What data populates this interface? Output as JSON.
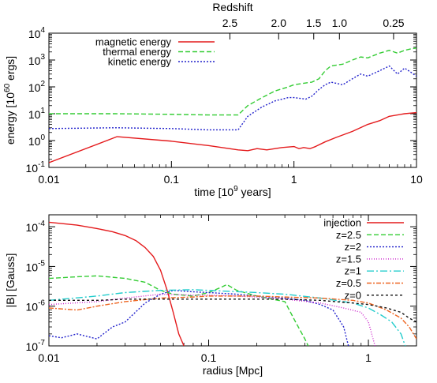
{
  "chart_data": [
    {
      "type": "line",
      "xlabel": "time [10",
      "xlabel_sup": "9",
      "xlabel_tail": " years]",
      "ylabel": "energy [10",
      "ylabel_sup": "60",
      "ylabel_tail": " ergs]",
      "top_axis_label": "Redshift",
      "x_scale": "log",
      "y_scale": "log",
      "xlim": [
        0.01,
        10
      ],
      "ylim": [
        0.1,
        10000
      ],
      "x_ticks": [
        {
          "v": 0.01,
          "label": "0.01"
        },
        {
          "v": 0.1,
          "label": "0.1"
        },
        {
          "v": 1,
          "label": "1"
        },
        {
          "v": 10,
          "label": "10"
        }
      ],
      "y_ticks": [
        {
          "v": 0.1,
          "base": "10",
          "exp": "-1"
        },
        {
          "v": 1,
          "base": "10",
          "exp": "0"
        },
        {
          "v": 10,
          "base": "10",
          "exp": "1"
        },
        {
          "v": 100,
          "base": "10",
          "exp": "2"
        },
        {
          "v": 1000,
          "base": "10",
          "exp": "3"
        },
        {
          "v": 10000,
          "base": "10",
          "exp": "4"
        }
      ],
      "top_ticks": [
        {
          "v": 0.3,
          "label": "2.5"
        },
        {
          "v": 0.75,
          "label": "2.0"
        },
        {
          "v": 1.45,
          "label": "1.5"
        },
        {
          "v": 2.35,
          "label": "1.0"
        },
        {
          "v": 6.5,
          "label": "0.25"
        }
      ],
      "legend_position": "top-left",
      "series": [
        {
          "name": "magnetic energy",
          "color": "#e41a1c",
          "dash": "",
          "x": [
            0.01,
            0.036,
            0.1,
            0.2,
            0.35,
            0.42,
            0.5,
            0.6,
            0.8,
            1.0,
            1.1,
            1.2,
            1.35,
            1.5,
            1.8,
            2.2,
            3.0,
            4.0,
            5.0,
            6.0,
            8.0,
            10.0
          ],
          "y": [
            0.15,
            1.4,
            0.95,
            0.65,
            0.45,
            0.42,
            0.5,
            0.45,
            0.55,
            0.6,
            0.5,
            0.55,
            0.5,
            0.6,
            0.9,
            1.3,
            2.2,
            4.0,
            5.5,
            8.0,
            10.0,
            11.0
          ]
        },
        {
          "name": "thermal energy",
          "color": "#33cc33",
          "dash": "6 3",
          "x": [
            0.01,
            0.035,
            0.1,
            0.2,
            0.35,
            0.42,
            0.55,
            0.7,
            0.9,
            1.0,
            1.25,
            1.4,
            1.6,
            1.8,
            2.0,
            2.5,
            3.0,
            3.5,
            4.0,
            5.0,
            6.0,
            7.0,
            8.0,
            9.0,
            10.0
          ],
          "y": [
            10,
            10,
            9.5,
            9.0,
            9.0,
            20,
            40,
            70,
            100,
            120,
            140,
            150,
            200,
            400,
            600,
            700,
            1000,
            1300,
            1200,
            1800,
            2300,
            1800,
            2300,
            2600,
            2800
          ]
        },
        {
          "name": "kinetic energy",
          "color": "#2222cc",
          "dash": "2 2",
          "x": [
            0.01,
            0.035,
            0.1,
            0.2,
            0.35,
            0.42,
            0.55,
            0.7,
            0.9,
            1.0,
            1.25,
            1.4,
            1.6,
            1.8,
            2.0,
            2.5,
            3.0,
            3.5,
            4.0,
            5.0,
            6.0,
            7.0,
            8.0,
            9.0,
            10.0
          ],
          "y": [
            2.8,
            3.0,
            2.8,
            2.5,
            2.5,
            8.0,
            18,
            30,
            40,
            40,
            35,
            45,
            80,
            120,
            150,
            120,
            200,
            300,
            250,
            400,
            600,
            300,
            500,
            350,
            250
          ]
        }
      ]
    },
    {
      "type": "line",
      "xlabel": "radius [Mpc]",
      "ylabel": "|B| [Gauss]",
      "x_scale": "log",
      "y_scale": "log",
      "xlim": [
        0.01,
        2
      ],
      "ylim": [
        1e-07,
        0.0002
      ],
      "x_ticks": [
        {
          "v": 0.01,
          "label": "0.01"
        },
        {
          "v": 0.1,
          "label": "0.1"
        },
        {
          "v": 1,
          "label": "1"
        }
      ],
      "y_ticks": [
        {
          "v": 1e-07,
          "base": "10",
          "exp": "-7"
        },
        {
          "v": 1e-06,
          "base": "10",
          "exp": "-6"
        },
        {
          "v": 1e-05,
          "base": "10",
          "exp": "-5"
        },
        {
          "v": 0.0001,
          "base": "10",
          "exp": "-4"
        }
      ],
      "legend_position": "top-right",
      "series": [
        {
          "name": "injection",
          "color": "#e41a1c",
          "dash": "",
          "x": [
            0.01,
            0.015,
            0.02,
            0.025,
            0.03,
            0.035,
            0.04,
            0.045,
            0.05,
            0.055,
            0.06,
            0.065,
            0.07
          ],
          "y": [
            0.00013,
            0.00011,
            9e-05,
            7.5e-05,
            6e-05,
            4.5e-05,
            3e-05,
            1.8e-05,
            8e-06,
            2.5e-06,
            7e-07,
            2e-07,
            1e-07
          ]
        },
        {
          "name": "z=2.5",
          "color": "#33cc33",
          "dash": "6 3",
          "x": [
            0.01,
            0.015,
            0.02,
            0.03,
            0.04,
            0.05,
            0.06,
            0.08,
            0.1,
            0.12,
            0.13,
            0.15,
            0.2,
            0.3,
            0.35,
            0.4,
            0.42
          ],
          "y": [
            5e-06,
            5.5e-06,
            5.8e-06,
            5e-06,
            4e-06,
            2.5e-06,
            2e-06,
            1.8e-06,
            2.2e-06,
            3e-06,
            3.5e-06,
            2.5e-06,
            1.8e-06,
            1.3e-06,
            4e-07,
            1.5e-07,
            1e-07
          ]
        },
        {
          "name": "z=2",
          "color": "#2222cc",
          "dash": "2 2",
          "x": [
            0.01,
            0.012,
            0.015,
            0.02,
            0.025,
            0.03,
            0.04,
            0.05,
            0.06,
            0.08,
            0.1,
            0.15,
            0.2,
            0.3,
            0.4,
            0.5,
            0.6,
            0.7,
            0.75
          ],
          "y": [
            1.8e-07,
            1.6e-07,
            2e-07,
            1.5e-07,
            3e-07,
            4e-07,
            1.2e-06,
            2e-06,
            2.5e-06,
            2.3e-06,
            2.2e-06,
            2e-06,
            1.8e-06,
            1.6e-06,
            1.4e-06,
            1.1e-06,
            8e-07,
            3e-07,
            1e-07
          ]
        },
        {
          "name": "z=1.5",
          "color": "#cc22cc",
          "dash": "1 2",
          "x": [
            0.01,
            0.02,
            0.03,
            0.05,
            0.08,
            0.1,
            0.15,
            0.2,
            0.3,
            0.5,
            0.7,
            0.9,
            1.0,
            1.1
          ],
          "y": [
            1.1e-06,
            1.3e-06,
            1.6e-06,
            2e-06,
            1.9e-06,
            1.9e-06,
            1.8e-06,
            1.7e-06,
            1.5e-06,
            1.2e-06,
            9e-07,
            7e-07,
            4e-07,
            1e-07
          ]
        },
        {
          "name": "z=1",
          "color": "#22cccc",
          "dash": "9 3 2 3",
          "x": [
            0.01,
            0.02,
            0.03,
            0.05,
            0.08,
            0.1,
            0.2,
            0.3,
            0.5,
            0.8,
            1.0,
            1.2,
            1.4,
            1.6,
            1.7
          ],
          "y": [
            1.4e-06,
            1.8e-06,
            2.2e-06,
            2.5e-06,
            2.6e-06,
            2.5e-06,
            2.2e-06,
            2e-06,
            1.6e-06,
            1.2e-06,
            9e-07,
            6e-07,
            4e-07,
            2e-07,
            1e-07
          ]
        },
        {
          "name": "z=0.5",
          "color": "#ee6622",
          "dash": "6 2 2 2",
          "x": [
            0.01,
            0.015,
            0.02,
            0.03,
            0.05,
            0.08,
            0.1,
            0.2,
            0.3,
            0.5,
            0.8,
            1.0,
            1.3,
            1.6,
            1.8,
            2.0
          ],
          "y": [
            9e-07,
            8e-07,
            1e-06,
            1.3e-06,
            1.6e-06,
            1.7e-06,
            1.8e-06,
            1.8e-06,
            1.7e-06,
            1.6e-06,
            1.4e-06,
            1.2e-06,
            8e-07,
            5e-07,
            3e-07,
            1.5e-07
          ]
        },
        {
          "name": "z=0",
          "color": "#111111",
          "dash": "3 3",
          "x": [
            0.01,
            0.02,
            0.03,
            0.05,
            0.08,
            0.1,
            0.2,
            0.3,
            0.5,
            0.8,
            1.0,
            1.3,
            1.6,
            1.8,
            2.0
          ],
          "y": [
            1.4e-06,
            1.4e-06,
            1.5e-06,
            1.5e-06,
            1.5e-06,
            1.5e-06,
            1.5e-06,
            1.5e-06,
            1.4e-06,
            1.2e-06,
            1.1e-06,
            9e-07,
            7e-07,
            5e-07,
            4e-07
          ]
        }
      ]
    }
  ]
}
